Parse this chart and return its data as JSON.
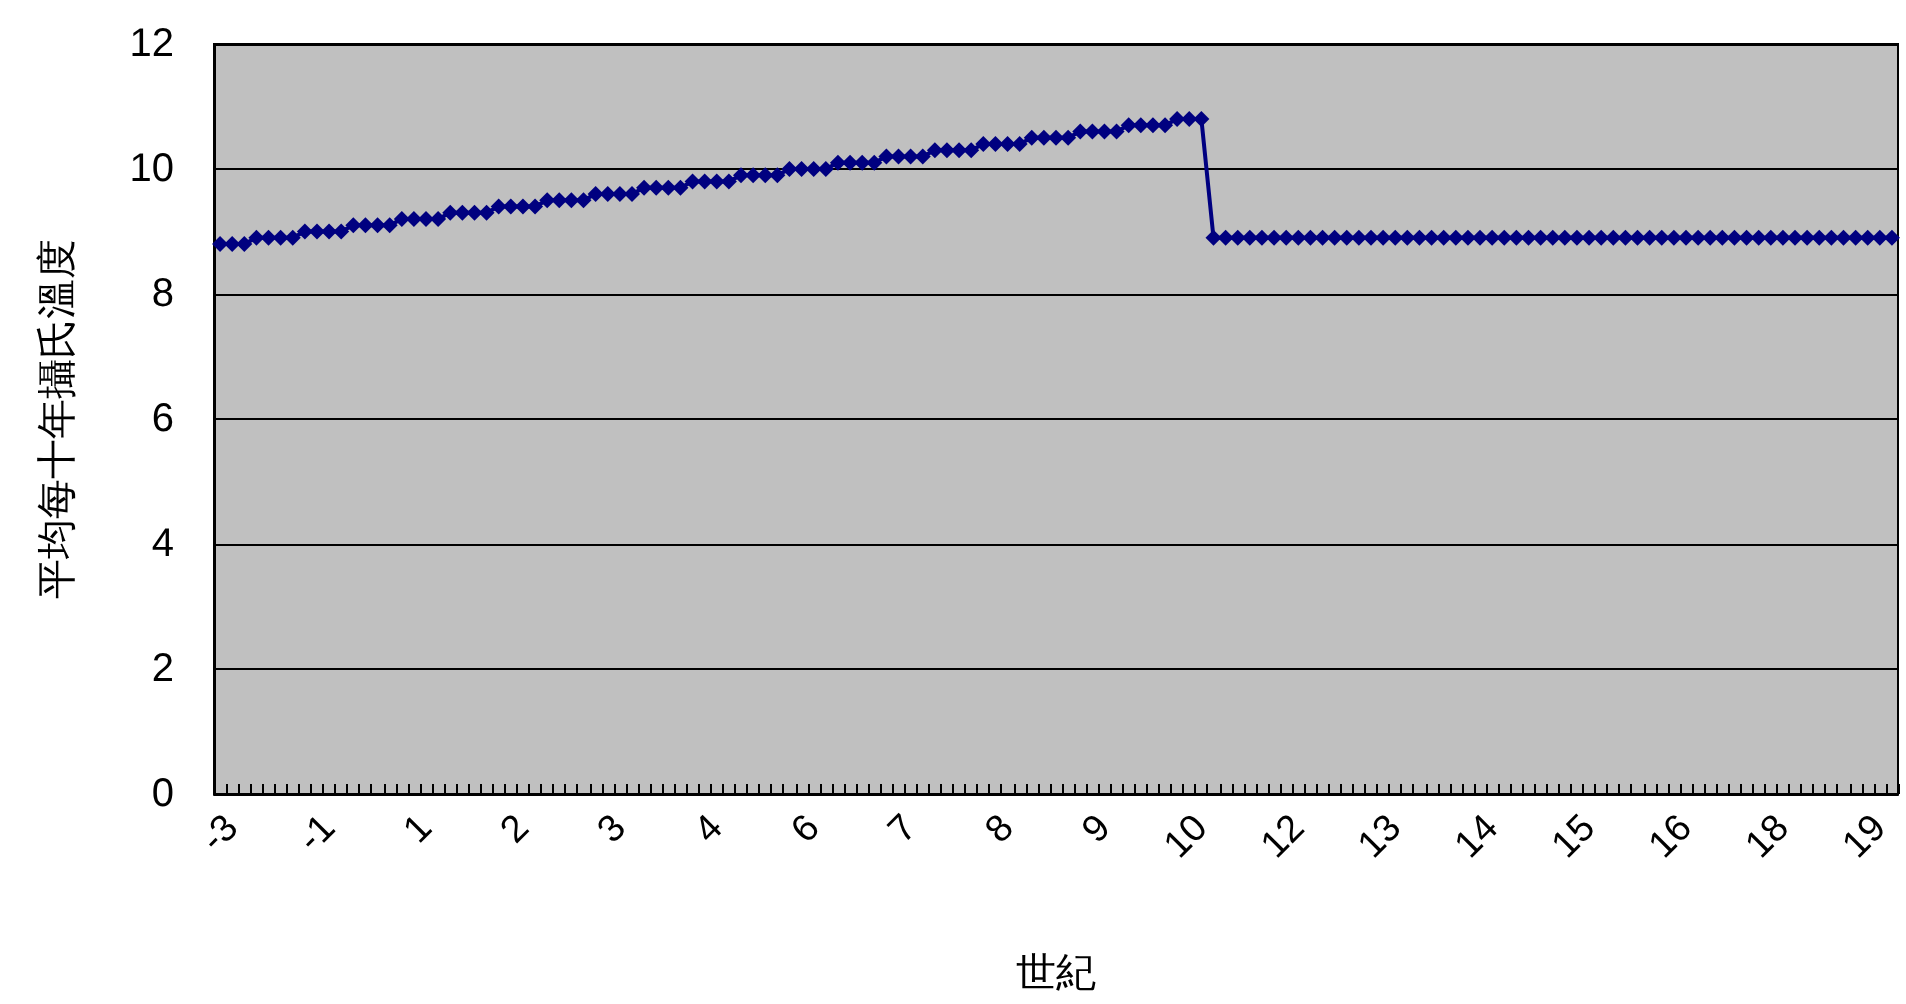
{
  "chart_data": {
    "type": "line",
    "xlabel": "世紀",
    "ylabel": "平均每十年攝氏溫度",
    "categories": [
      null,
      "-3",
      null,
      null,
      null,
      null,
      null,
      null,
      null,
      "-1",
      null,
      null,
      null,
      null,
      null,
      null,
      null,
      "1",
      null,
      null,
      null,
      null,
      null,
      null,
      null,
      "2",
      null,
      null,
      null,
      null,
      null,
      null,
      null,
      "3",
      null,
      null,
      null,
      null,
      null,
      null,
      null,
      "4",
      null,
      null,
      null,
      null,
      null,
      null,
      null,
      "6",
      null,
      null,
      null,
      null,
      null,
      null,
      null,
      "7",
      null,
      null,
      null,
      null,
      null,
      null,
      null,
      "8",
      null,
      null,
      null,
      null,
      null,
      null,
      null,
      "9",
      null,
      null,
      null,
      null,
      null,
      null,
      null,
      "10",
      null,
      null,
      null,
      null,
      null,
      null,
      null,
      "12",
      null,
      null,
      null,
      null,
      null,
      null,
      null,
      "13",
      null,
      null,
      null,
      null,
      null,
      null,
      null,
      "14",
      null,
      null,
      null,
      null,
      null,
      null,
      null,
      "15",
      null,
      null,
      null,
      null,
      null,
      null,
      null,
      "16",
      null,
      null,
      null,
      null,
      null,
      null,
      null,
      "18",
      null,
      null,
      null,
      null,
      null,
      null,
      null,
      "19",
      null
    ],
    "series": [
      {
        "color": "#000080",
        "values": [
          8.8,
          8.8,
          8.8,
          8.9,
          8.9,
          8.9,
          8.9,
          9.0,
          9.0,
          9.0,
          9.0,
          9.1,
          9.1,
          9.1,
          9.1,
          9.2,
          9.2,
          9.2,
          9.2,
          9.3,
          9.3,
          9.3,
          9.3,
          9.4,
          9.4,
          9.4,
          9.4,
          9.5,
          9.5,
          9.5,
          9.5,
          9.6,
          9.6,
          9.6,
          9.6,
          9.7,
          9.7,
          9.7,
          9.7,
          9.8,
          9.8,
          9.8,
          9.8,
          9.9,
          9.9,
          9.9,
          9.9,
          10.0,
          10.0,
          10.0,
          10.0,
          10.1,
          10.1,
          10.1,
          10.1,
          10.2,
          10.2,
          10.2,
          10.2,
          10.3,
          10.3,
          10.3,
          10.3,
          10.4,
          10.4,
          10.4,
          10.4,
          10.5,
          10.5,
          10.5,
          10.5,
          10.6,
          10.6,
          10.6,
          10.6,
          10.7,
          10.7,
          10.7,
          10.7,
          10.8,
          10.8,
          10.8,
          8.9,
          8.9,
          8.9,
          8.9,
          8.9,
          8.9,
          8.9,
          8.9,
          8.9,
          8.9,
          8.9,
          8.9,
          8.9,
          8.9,
          8.9,
          8.9,
          8.9,
          8.9,
          8.9,
          8.9,
          8.9,
          8.9,
          8.9,
          8.9,
          8.9,
          8.9,
          8.9,
          8.9,
          8.9,
          8.9,
          8.9,
          8.9,
          8.9,
          8.9,
          8.9,
          8.9,
          8.9,
          8.9,
          8.9,
          8.9,
          8.9,
          8.9,
          8.9,
          8.9,
          8.9,
          8.9,
          8.9,
          8.9,
          8.9,
          8.9,
          8.9,
          8.9,
          8.9,
          8.9,
          8.9,
          8.9,
          8.9
        ]
      }
    ],
    "ylim": [
      0,
      12
    ],
    "yticks": [
      0,
      2,
      4,
      6,
      8,
      10,
      12
    ],
    "grid": "y",
    "marker": "diamond",
    "line_style": "solid"
  }
}
